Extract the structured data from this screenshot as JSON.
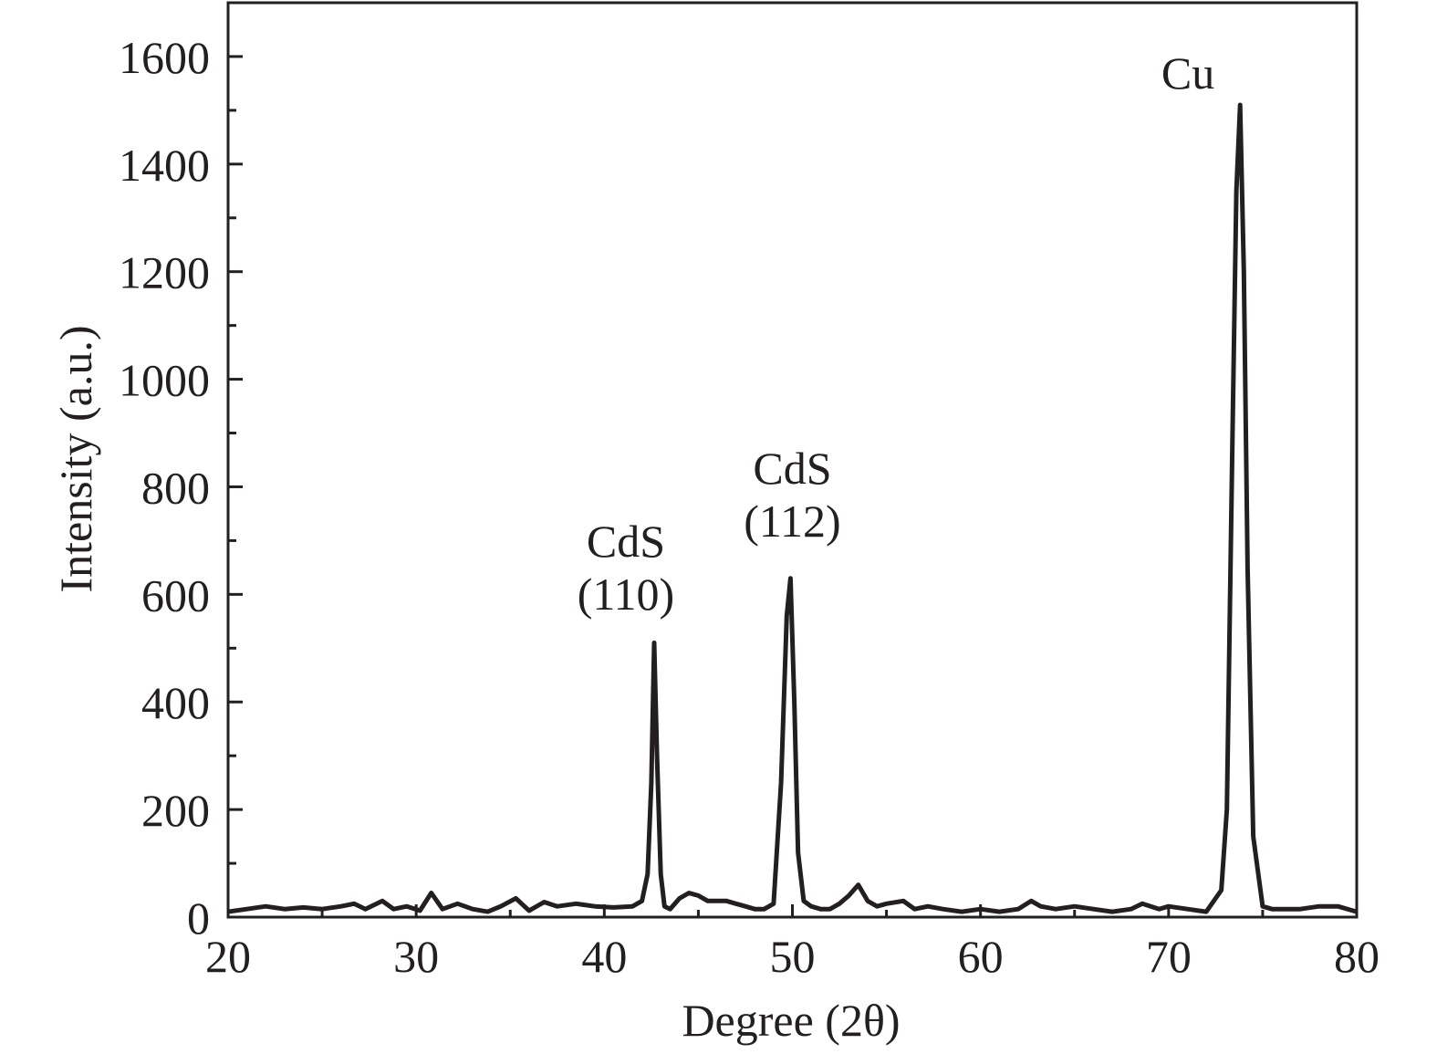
{
  "chart_data": {
    "type": "line",
    "title": "",
    "xlabel": "Degree (2θ)",
    "ylabel": "Intensity (a.u.)",
    "xlim": [
      20,
      80
    ],
    "ylim": [
      0,
      1700
    ],
    "xticks": [
      20,
      30,
      40,
      50,
      60,
      70,
      80
    ],
    "yticks": [
      0,
      200,
      400,
      600,
      800,
      1000,
      1200,
      1400,
      1600
    ],
    "grid": false,
    "legend": "none",
    "line_color": "#231f20",
    "series": [
      {
        "x": [
          20,
          21,
          22,
          23,
          24,
          25,
          26,
          26.7,
          27.3,
          28.2,
          28.8,
          29.5,
          30.2,
          30.8,
          31.4,
          32.2,
          33,
          33.8,
          34.5,
          35.3,
          36,
          36.8,
          37.5,
          38.5,
          39.5,
          40.5,
          41.5,
          42,
          42.3,
          42.5,
          42.65,
          42.8,
          43.0,
          43.2,
          43.5,
          44,
          44.5,
          45,
          45.5,
          46,
          46.5,
          47,
          47.5,
          48,
          48.5,
          49,
          49.4,
          49.7,
          49.9,
          50.1,
          50.3,
          50.6,
          51,
          51.5,
          52,
          52.5,
          53,
          53.5,
          54,
          54.5,
          55,
          55.9,
          56.5,
          57.2,
          58,
          59,
          60,
          61,
          62,
          62.7,
          63.2,
          64,
          65,
          66,
          67,
          68,
          68.6,
          69.5,
          70,
          71,
          72,
          72.8,
          73.1,
          73.4,
          73.6,
          73.8,
          74.0,
          74.2,
          74.5,
          75,
          75.5,
          76,
          77,
          78,
          79,
          80
        ],
        "y": [
          10,
          15,
          20,
          15,
          18,
          15,
          20,
          25,
          15,
          30,
          15,
          20,
          12,
          45,
          15,
          25,
          15,
          10,
          20,
          35,
          12,
          28,
          20,
          25,
          20,
          18,
          20,
          30,
          80,
          250,
          510,
          300,
          80,
          20,
          15,
          35,
          45,
          40,
          30,
          30,
          30,
          25,
          20,
          15,
          15,
          25,
          250,
          560,
          630,
          400,
          120,
          30,
          20,
          15,
          15,
          25,
          40,
          60,
          30,
          20,
          25,
          30,
          15,
          20,
          15,
          10,
          15,
          10,
          15,
          30,
          20,
          15,
          20,
          15,
          10,
          15,
          25,
          15,
          20,
          15,
          10,
          50,
          200,
          900,
          1350,
          1510,
          1200,
          650,
          150,
          20,
          15,
          15,
          15,
          20,
          20,
          10
        ]
      }
    ],
    "annotations": [
      {
        "lines": [
          "CdS",
          "(110)"
        ],
        "x": 42.7
      },
      {
        "lines": [
          "CdS",
          "(112)"
        ],
        "x": 50.0
      },
      {
        "lines": [
          "Cu"
        ],
        "x": 73.7
      }
    ]
  }
}
